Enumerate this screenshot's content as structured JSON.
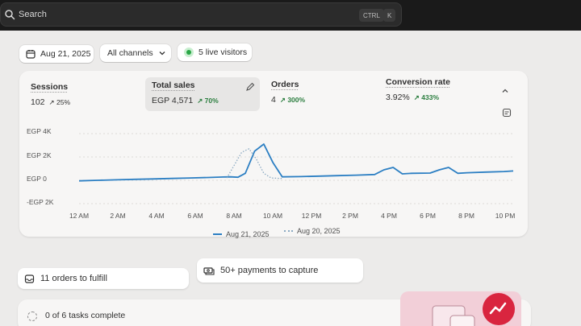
{
  "topbar": {
    "search_label": "Search",
    "shortcut_ctrl": "CTRL",
    "shortcut_key": "K"
  },
  "filters": {
    "date": "Aug 21, 2025",
    "channels": "All channels",
    "live_visitors": "5 live visitors",
    "live_color": "#29a646"
  },
  "metrics": [
    {
      "title": "Sessions",
      "value": "102",
      "delta": "25%",
      "delta_positive": false
    },
    {
      "title": "Total sales",
      "value": "EGP 4,571",
      "delta": "70%",
      "delta_positive": true
    },
    {
      "title": "Orders",
      "value": "4",
      "delta": "300%",
      "delta_positive": true
    },
    {
      "title": "Conversion rate",
      "value": "3.92%",
      "delta": "433%",
      "delta_positive": true
    }
  ],
  "chart_data": {
    "type": "line",
    "y_ticks": [
      "EGP 4K",
      "EGP 2K",
      "EGP 0",
      "-EGP 2K"
    ],
    "x_ticks": [
      "12 AM",
      "2 AM",
      "4 AM",
      "6 AM",
      "8 AM",
      "10 AM",
      "12 PM",
      "2 PM",
      "4 PM",
      "6 PM",
      "8 PM",
      "10 PM"
    ],
    "ylim": [
      -2000,
      4000
    ],
    "grid": true,
    "legend_position": "bottom",
    "series": [
      {
        "name": "Aug 21, 2025",
        "style": "solid",
        "color": "#2c7fc3",
        "x": [
          0,
          1,
          2,
          3,
          4,
          5,
          6,
          7,
          7.8,
          8.2,
          8.6,
          9,
          9.5,
          10,
          10.5,
          11,
          12,
          13,
          14,
          15,
          16,
          16.5,
          17,
          17.5,
          18,
          19,
          19.5,
          20,
          20.5,
          21,
          22,
          23,
          23.5
        ],
        "y": [
          -50,
          0,
          40,
          80,
          120,
          160,
          200,
          240,
          280,
          300,
          260,
          600,
          2500,
          3100,
          1500,
          300,
          320,
          360,
          400,
          440,
          500,
          900,
          1100,
          550,
          600,
          620,
          900,
          1100,
          600,
          650,
          700,
          750,
          800
        ]
      },
      {
        "name": "Aug 20, 2025",
        "style": "dashed",
        "color": "#8aa9c2",
        "x": [
          8,
          8.4,
          8.8,
          9.2,
          9.6,
          10,
          10.4,
          11
        ],
        "y": [
          200,
          1300,
          2400,
          2700,
          1800,
          600,
          200,
          150
        ]
      }
    ]
  },
  "tasks": {
    "fulfill": "11 orders to fulfill",
    "payments": "50+ payments to capture",
    "progress": "0 of 6 tasks complete"
  }
}
